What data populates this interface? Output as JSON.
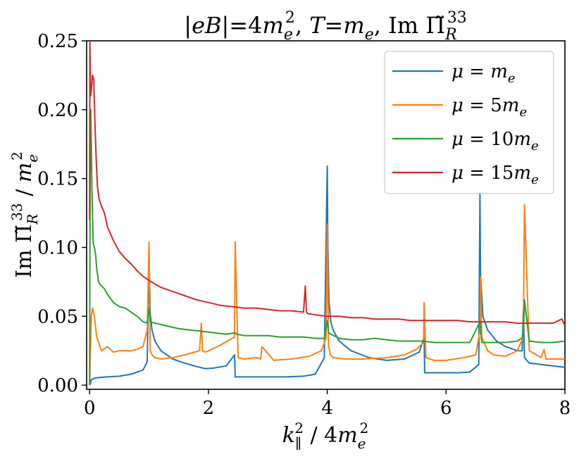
{
  "chart_data": {
    "type": "line",
    "title": "|eB| = 4m_e^2, T = m_e, Im Π̃_R^33",
    "title_parts": {
      "prefix": "|",
      "eB": "eB",
      "eq1": "|=4",
      "m1": "m",
      "sub_e1": "e",
      "sup_2": "2",
      "comma1": ", ",
      "T": "T",
      "eq2": "=",
      "m2": "m",
      "sub_e2": "e",
      "comma2": ", Im ",
      "Pi": "Π̃",
      "sub_R": "R",
      "sup_33": "33"
    },
    "xlabel_parts": {
      "k": "k",
      "sub_par": "∥",
      "sup_2": "2",
      "div": " / 4",
      "m": "m",
      "sub_e": "e",
      "sup_2b": "2"
    },
    "ylabel_parts": {
      "im": "Im ",
      "Pi": "Π̃",
      "sub_R": "R",
      "sup_33": "33",
      "div": " / ",
      "m": "m",
      "sub_e": "e",
      "sup_2": "2"
    },
    "xlabel": "k_∥^2 / 4m_e^2",
    "ylabel": "Im Π̃_R^33 / m_e^2",
    "xlim": [
      -0.05,
      8
    ],
    "ylim": [
      -0.003,
      0.25
    ],
    "x_ticks": [
      0,
      2,
      4,
      6,
      8
    ],
    "x_tick_labels": [
      "0",
      "2",
      "4",
      "6",
      "8"
    ],
    "y_ticks": [
      0.0,
      0.05,
      0.1,
      0.15,
      0.2,
      0.25
    ],
    "y_tick_labels": [
      "0.00",
      "0.05",
      "0.10",
      "0.15",
      "0.20",
      "0.25"
    ],
    "legend_position": "top-right",
    "series": [
      {
        "name": "μ = m_e",
        "label_greek": "μ",
        "label_eq": " = ",
        "label_coef": "",
        "label_m": "m",
        "label_sub": "e",
        "color": "#1f77b4",
        "x": [
          0.0,
          0.01,
          0.03,
          0.08,
          0.15,
          0.3,
          0.5,
          0.7,
          0.9,
          0.97,
          1.0,
          1.02,
          1.05,
          1.1,
          1.2,
          1.4,
          1.6,
          1.8,
          1.95,
          2.1,
          2.3,
          2.44,
          2.45,
          2.7,
          3.0,
          3.3,
          3.6,
          3.8,
          3.95,
          4.0,
          4.01,
          4.03,
          4.06,
          4.1,
          4.2,
          4.4,
          4.7,
          5.0,
          5.3,
          5.55,
          5.63,
          5.64,
          5.9,
          6.2,
          6.4,
          6.55,
          6.57,
          6.58,
          6.62,
          6.7,
          6.85,
          7.0,
          7.2,
          7.28,
          7.3,
          7.32,
          7.4,
          7.6,
          7.8,
          8.0
        ],
        "y": [
          0.0,
          0.001,
          0.004,
          0.005,
          0.0055,
          0.006,
          0.0065,
          0.008,
          0.011,
          0.017,
          0.095,
          0.052,
          0.04,
          0.032,
          0.025,
          0.019,
          0.016,
          0.0135,
          0.012,
          0.0125,
          0.014,
          0.022,
          0.006,
          0.006,
          0.006,
          0.006,
          0.0065,
          0.008,
          0.02,
          0.159,
          0.1,
          0.06,
          0.046,
          0.04,
          0.032,
          0.025,
          0.02,
          0.018,
          0.019,
          0.024,
          0.035,
          0.009,
          0.009,
          0.009,
          0.0095,
          0.015,
          0.14,
          0.08,
          0.05,
          0.04,
          0.032,
          0.028,
          0.025,
          0.025,
          0.055,
          0.02,
          0.016,
          0.015,
          0.014,
          0.013
        ]
      },
      {
        "name": "μ = 5m_e",
        "label_greek": "μ",
        "label_eq": " = ",
        "label_coef": "5",
        "label_m": "m",
        "label_sub": "e",
        "color": "#ff7f0e",
        "x": [
          0.0,
          0.01,
          0.03,
          0.05,
          0.08,
          0.12,
          0.2,
          0.3,
          0.4,
          0.5,
          0.6,
          0.7,
          0.8,
          0.9,
          0.97,
          1.0,
          1.02,
          1.05,
          1.1,
          1.2,
          1.4,
          1.6,
          1.85,
          1.88,
          1.9,
          1.95,
          2.2,
          2.44,
          2.45,
          2.5,
          2.6,
          2.8,
          2.88,
          2.9,
          3.1,
          3.4,
          3.7,
          3.9,
          3.98,
          4.0,
          4.02,
          4.05,
          4.1,
          4.3,
          4.6,
          5.0,
          5.3,
          5.5,
          5.62,
          5.63,
          5.66,
          5.8,
          6.0,
          6.3,
          6.5,
          6.57,
          6.58,
          6.6,
          6.7,
          6.8,
          7.0,
          7.2,
          7.3,
          7.32,
          7.4,
          7.6,
          7.65,
          7.68,
          7.8,
          8.0
        ],
        "y": [
          0.0,
          0.02,
          0.05,
          0.056,
          0.05,
          0.035,
          0.025,
          0.028,
          0.024,
          0.025,
          0.025,
          0.025,
          0.026,
          0.028,
          0.04,
          0.104,
          0.025,
          0.022,
          0.02,
          0.019,
          0.02,
          0.022,
          0.025,
          0.045,
          0.025,
          0.024,
          0.029,
          0.035,
          0.104,
          0.02,
          0.019,
          0.02,
          0.019,
          0.028,
          0.018,
          0.019,
          0.021,
          0.025,
          0.034,
          0.117,
          0.03,
          0.022,
          0.02,
          0.019,
          0.019,
          0.02,
          0.022,
          0.026,
          0.031,
          0.06,
          0.02,
          0.018,
          0.018,
          0.02,
          0.022,
          0.04,
          0.079,
          0.035,
          0.025,
          0.022,
          0.021,
          0.025,
          0.035,
          0.131,
          0.025,
          0.02,
          0.026,
          0.019,
          0.019,
          0.019
        ]
      },
      {
        "name": "μ = 10m_e",
        "label_greek": "μ",
        "label_eq": " = ",
        "label_coef": "10",
        "label_m": "m",
        "label_sub": "e",
        "color": "#2ca02c",
        "x": [
          0.0,
          0.01,
          0.02,
          0.04,
          0.06,
          0.08,
          0.1,
          0.12,
          0.15,
          0.2,
          0.25,
          0.3,
          0.4,
          0.5,
          0.6,
          0.7,
          0.8,
          0.9,
          0.97,
          1.0,
          1.02,
          1.1,
          1.2,
          1.3,
          1.5,
          1.7,
          1.9,
          2.1,
          2.3,
          2.45,
          2.47,
          2.6,
          2.8,
          3.0,
          3.2,
          3.4,
          3.6,
          3.8,
          3.95,
          4.0,
          4.02,
          4.2,
          4.4,
          4.6,
          4.8,
          5.0,
          5.2,
          5.4,
          5.6,
          5.8,
          6.0,
          6.2,
          6.4,
          6.57,
          6.6,
          6.8,
          7.0,
          7.2,
          7.3,
          7.32,
          7.4,
          7.6,
          7.8,
          8.0
        ],
        "y": [
          0.0,
          0.18,
          0.2,
          0.14,
          0.103,
          0.1,
          0.095,
          0.085,
          0.075,
          0.072,
          0.07,
          0.066,
          0.06,
          0.057,
          0.056,
          0.053,
          0.05,
          0.046,
          0.045,
          0.056,
          0.046,
          0.045,
          0.044,
          0.043,
          0.041,
          0.04,
          0.039,
          0.038,
          0.037,
          0.038,
          0.037,
          0.036,
          0.036,
          0.036,
          0.035,
          0.035,
          0.035,
          0.034,
          0.034,
          0.047,
          0.038,
          0.034,
          0.033,
          0.033,
          0.034,
          0.033,
          0.032,
          0.032,
          0.032,
          0.031,
          0.031,
          0.031,
          0.031,
          0.046,
          0.031,
          0.031,
          0.031,
          0.032,
          0.035,
          0.062,
          0.032,
          0.031,
          0.031,
          0.032
        ]
      },
      {
        "name": "μ = 15m_e",
        "label_greek": "μ",
        "label_eq": " = ",
        "label_coef": "15",
        "label_m": "m",
        "label_sub": "e",
        "color": "#d62728",
        "x": [
          0.0,
          0.005,
          0.01,
          0.015,
          0.03,
          0.05,
          0.07,
          0.09,
          0.11,
          0.13,
          0.16,
          0.2,
          0.25,
          0.3,
          0.4,
          0.5,
          0.6,
          0.7,
          0.8,
          0.9,
          1.0,
          1.2,
          1.4,
          1.6,
          1.8,
          2.0,
          2.2,
          2.4,
          2.6,
          2.8,
          3.0,
          3.2,
          3.4,
          3.6,
          3.63,
          3.65,
          3.67,
          3.8,
          4.0,
          4.2,
          4.4,
          4.6,
          4.8,
          5.0,
          5.2,
          5.4,
          5.6,
          5.8,
          6.0,
          6.2,
          6.4,
          6.6,
          6.8,
          7.0,
          7.2,
          7.4,
          7.6,
          7.8,
          7.95,
          8.0
        ],
        "y": [
          0.12,
          0.25,
          0.23,
          0.21,
          0.215,
          0.225,
          0.222,
          0.19,
          0.165,
          0.145,
          0.135,
          0.13,
          0.125,
          0.115,
          0.105,
          0.097,
          0.092,
          0.088,
          0.083,
          0.079,
          0.076,
          0.071,
          0.068,
          0.065,
          0.062,
          0.06,
          0.058,
          0.057,
          0.056,
          0.056,
          0.055,
          0.054,
          0.054,
          0.053,
          0.072,
          0.053,
          0.052,
          0.051,
          0.05,
          0.05,
          0.049,
          0.049,
          0.048,
          0.048,
          0.048,
          0.047,
          0.047,
          0.047,
          0.047,
          0.047,
          0.046,
          0.046,
          0.046,
          0.046,
          0.045,
          0.045,
          0.045,
          0.045,
          0.048,
          0.043
        ]
      }
    ]
  }
}
